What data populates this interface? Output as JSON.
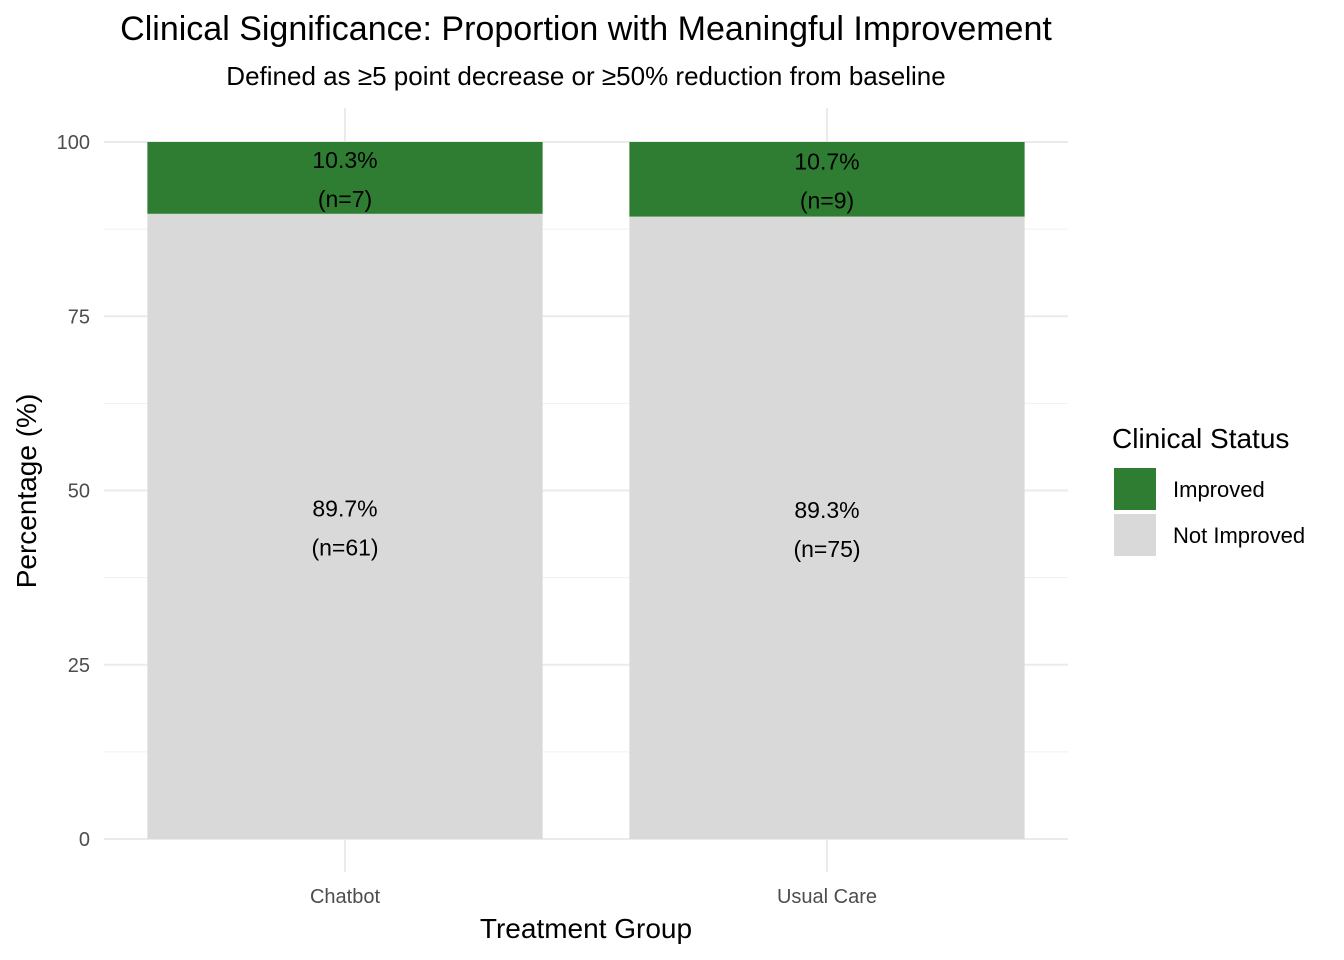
{
  "chart_data": {
    "type": "bar",
    "stacked": true,
    "title": "Clinical Significance: Proportion with Meaningful Improvement",
    "subtitle": "Defined as ≥5 point decrease or ≥50% reduction from baseline",
    "xlabel": "Treatment Group",
    "ylabel": "Percentage (%)",
    "categories": [
      "Chatbot",
      "Usual Care"
    ],
    "ylim": [
      0,
      100
    ],
    "yticks": [
      0,
      25,
      50,
      75,
      100
    ],
    "grid": true,
    "legend": {
      "title": "Clinical Status",
      "position": "right"
    },
    "series": [
      {
        "name": "Improved",
        "color": "#2e7d32",
        "values": [
          10.3,
          10.7
        ],
        "labels": [
          "10.3%",
          "10.7%"
        ],
        "counts": [
          "(n=7)",
          "(n=9)"
        ]
      },
      {
        "name": "Not Improved",
        "color": "#d9d9d9",
        "values": [
          89.7,
          89.3
        ],
        "labels": [
          "89.7%",
          "89.3%"
        ],
        "counts": [
          "(n=61)",
          "(n=75)"
        ]
      }
    ]
  }
}
